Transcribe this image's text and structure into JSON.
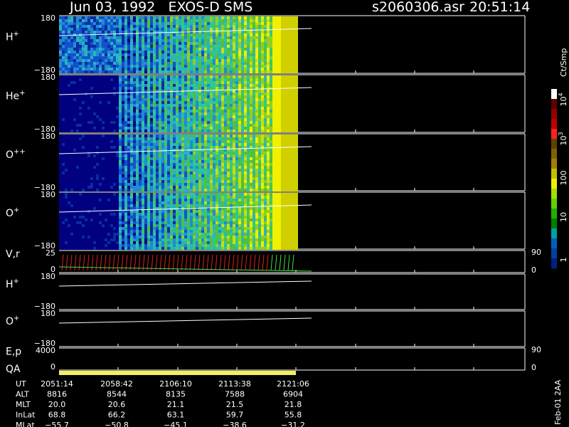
{
  "header": {
    "title": "Jun 03, 1992   EXOS-D SMS",
    "file": "s2060306.asr",
    "time": "20:51:14"
  },
  "panels": [
    {
      "label": {
        "text": "H",
        "sup": "+"
      },
      "yticks": [
        180,
        {
          "value": -180,
          "label": "−180"
        }
      ]
    },
    {
      "label": {
        "text": "He",
        "sup": "+"
      },
      "yticks": [
        180,
        {
          "value": -180,
          "label": "−180"
        }
      ]
    },
    {
      "label": {
        "text": "O",
        "sup": "++"
      },
      "yticks": [
        180,
        {
          "value": -180,
          "label": "−180"
        }
      ]
    },
    {
      "label": {
        "text": "O",
        "sup": "+"
      },
      "yticks": [
        180,
        {
          "value": -180,
          "label": "−180"
        }
      ]
    },
    {
      "label": {
        "text": "V,r"
      },
      "yticks": [
        25,
        0
      ],
      "y2ticks": [
        90,
        0
      ]
    },
    {
      "label": {
        "text": "H",
        "sup": "+"
      },
      "yticks": [
        180,
        {
          "value": -180,
          "label": "−180"
        }
      ]
    },
    {
      "label": {
        "text": "O",
        "sup": "+"
      },
      "yticks": [
        180,
        {
          "value": -180,
          "label": "−180"
        }
      ]
    },
    {
      "label": {
        "text": "E,p"
      },
      "yticks": [
        4000,
        0
      ],
      "y2ticks": [
        90,
        0
      ]
    },
    {
      "label": {
        "text": "QA"
      }
    }
  ],
  "colorbar": {
    "title": "Ct/Smp",
    "labels": [
      {
        "base": "10",
        "exp": "4"
      },
      {
        "base": "10",
        "exp": "3"
      },
      {
        "base": "100"
      },
      {
        "base": "10"
      },
      {
        "base": "1"
      }
    ]
  },
  "table": {
    "rows": [
      [
        "UT",
        "2051:14",
        "2058:42",
        "2106:10",
        "2113:38",
        "2121:06"
      ],
      [
        "ALT",
        "8816",
        "8544",
        "8135",
        "7588",
        "6904"
      ],
      [
        "MLT",
        "20.0",
        "20.6",
        "21.1",
        "21.5",
        "21.8"
      ],
      [
        "InLat",
        "68.8",
        "66.2",
        "63.1",
        "59.7",
        "55.8"
      ],
      [
        "MLat",
        "−55.7",
        "−50.8",
        "−45.1",
        "−38.6",
        "−31.2"
      ]
    ]
  },
  "footer": "Feb-01 2AA"
}
